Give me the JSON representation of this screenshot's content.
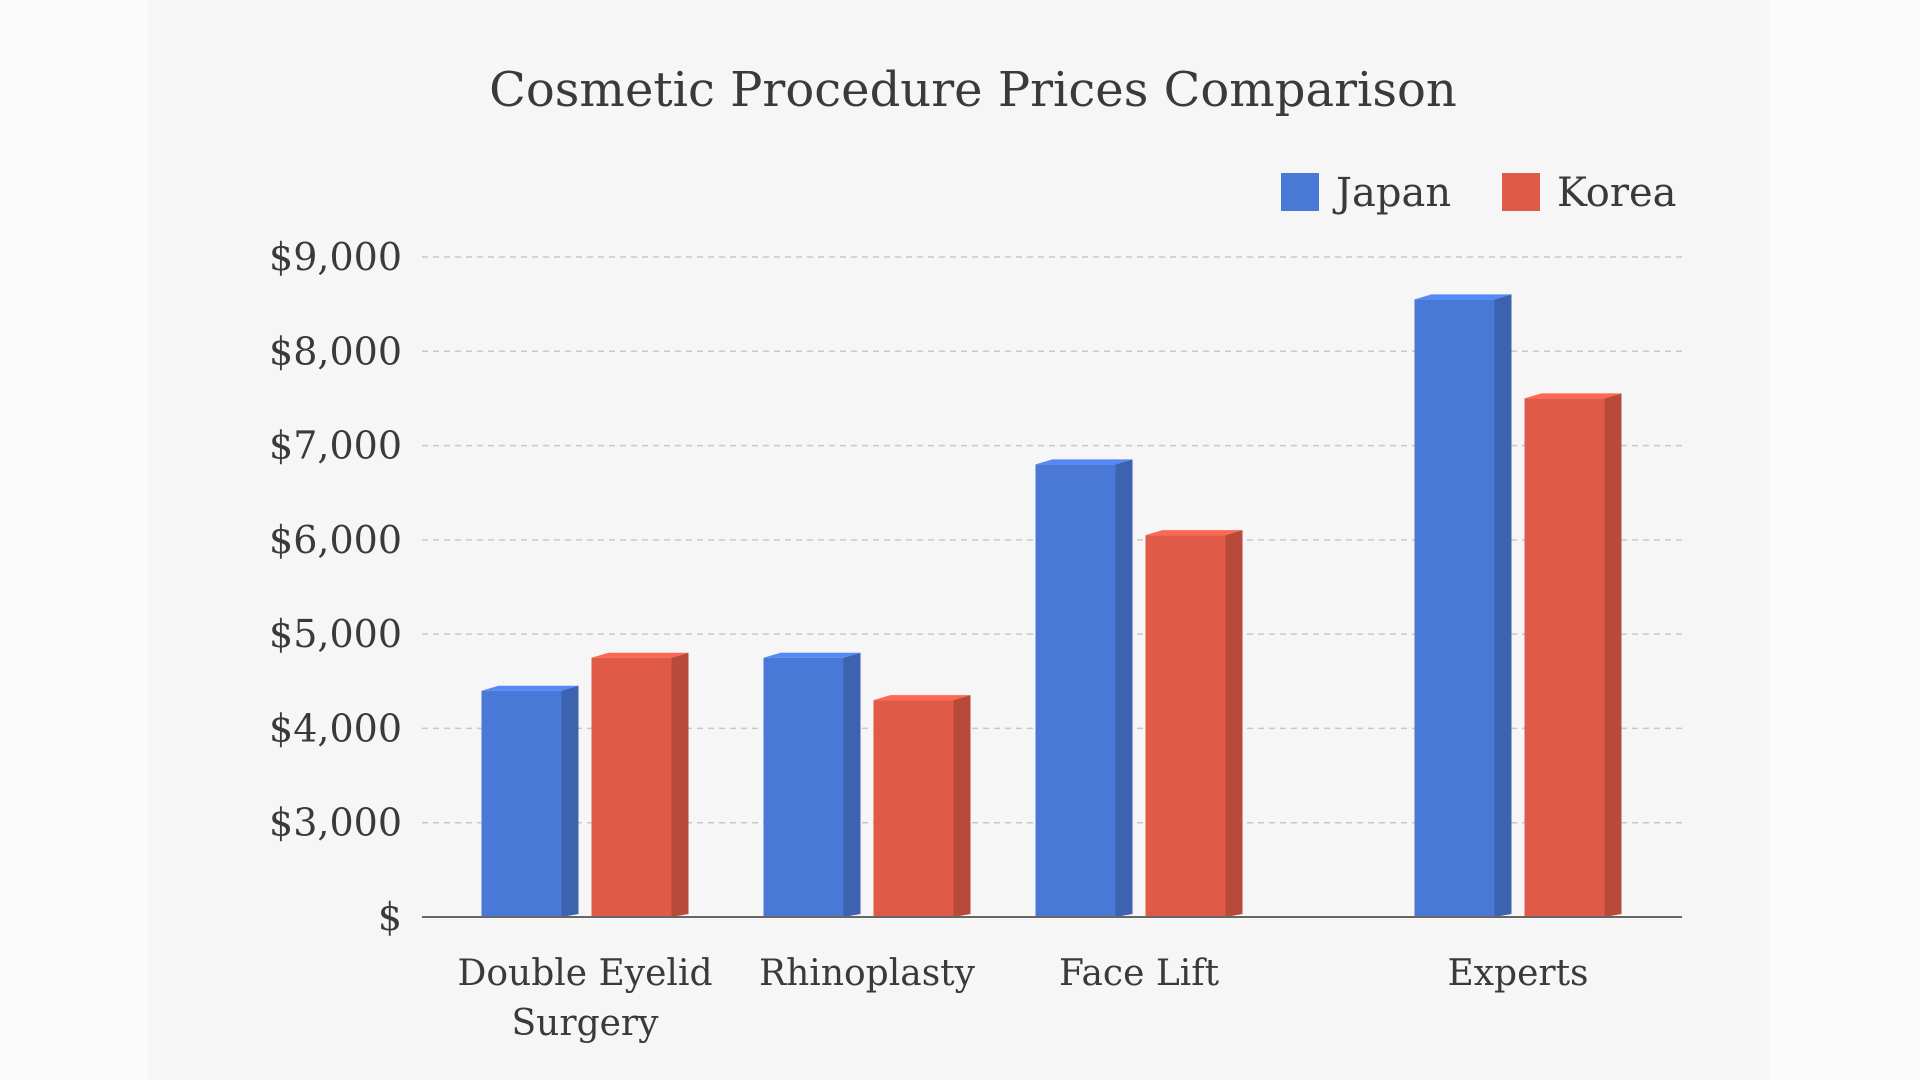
{
  "chart_data": {
    "type": "bar",
    "title": "Cosmetic Procedure Prices Comparison",
    "xlabel": "",
    "ylabel": "",
    "categories": [
      [
        "Double Eyelid",
        "Surgery"
      ],
      [
        "Rhinoplasty"
      ],
      [
        "Face Lift"
      ],
      [
        "Experts"
      ]
    ],
    "series": [
      {
        "name": "Japan",
        "color": "#4a78d6",
        "values": [
          4400,
          4750,
          6800,
          8550
        ]
      },
      {
        "name": "Korea",
        "color": "#e05a48",
        "values": [
          4750,
          4300,
          6050,
          7500
        ]
      }
    ],
    "ylim": [
      2000,
      9000
    ],
    "yticks": [
      {
        "value": 2000,
        "label": "$"
      },
      {
        "value": 3000,
        "label": "$3,000"
      },
      {
        "value": 4000,
        "label": "$4,000"
      },
      {
        "value": 5000,
        "label": "$5,000"
      },
      {
        "value": 6000,
        "label": "$6,000"
      },
      {
        "value": 7000,
        "label": "$7,000"
      },
      {
        "value": 8000,
        "label": "$8,000"
      },
      {
        "value": 9000,
        "label": "$9,000"
      }
    ],
    "grid": "horizontal dashed",
    "legend": "top-right",
    "bar_style": "3d"
  }
}
